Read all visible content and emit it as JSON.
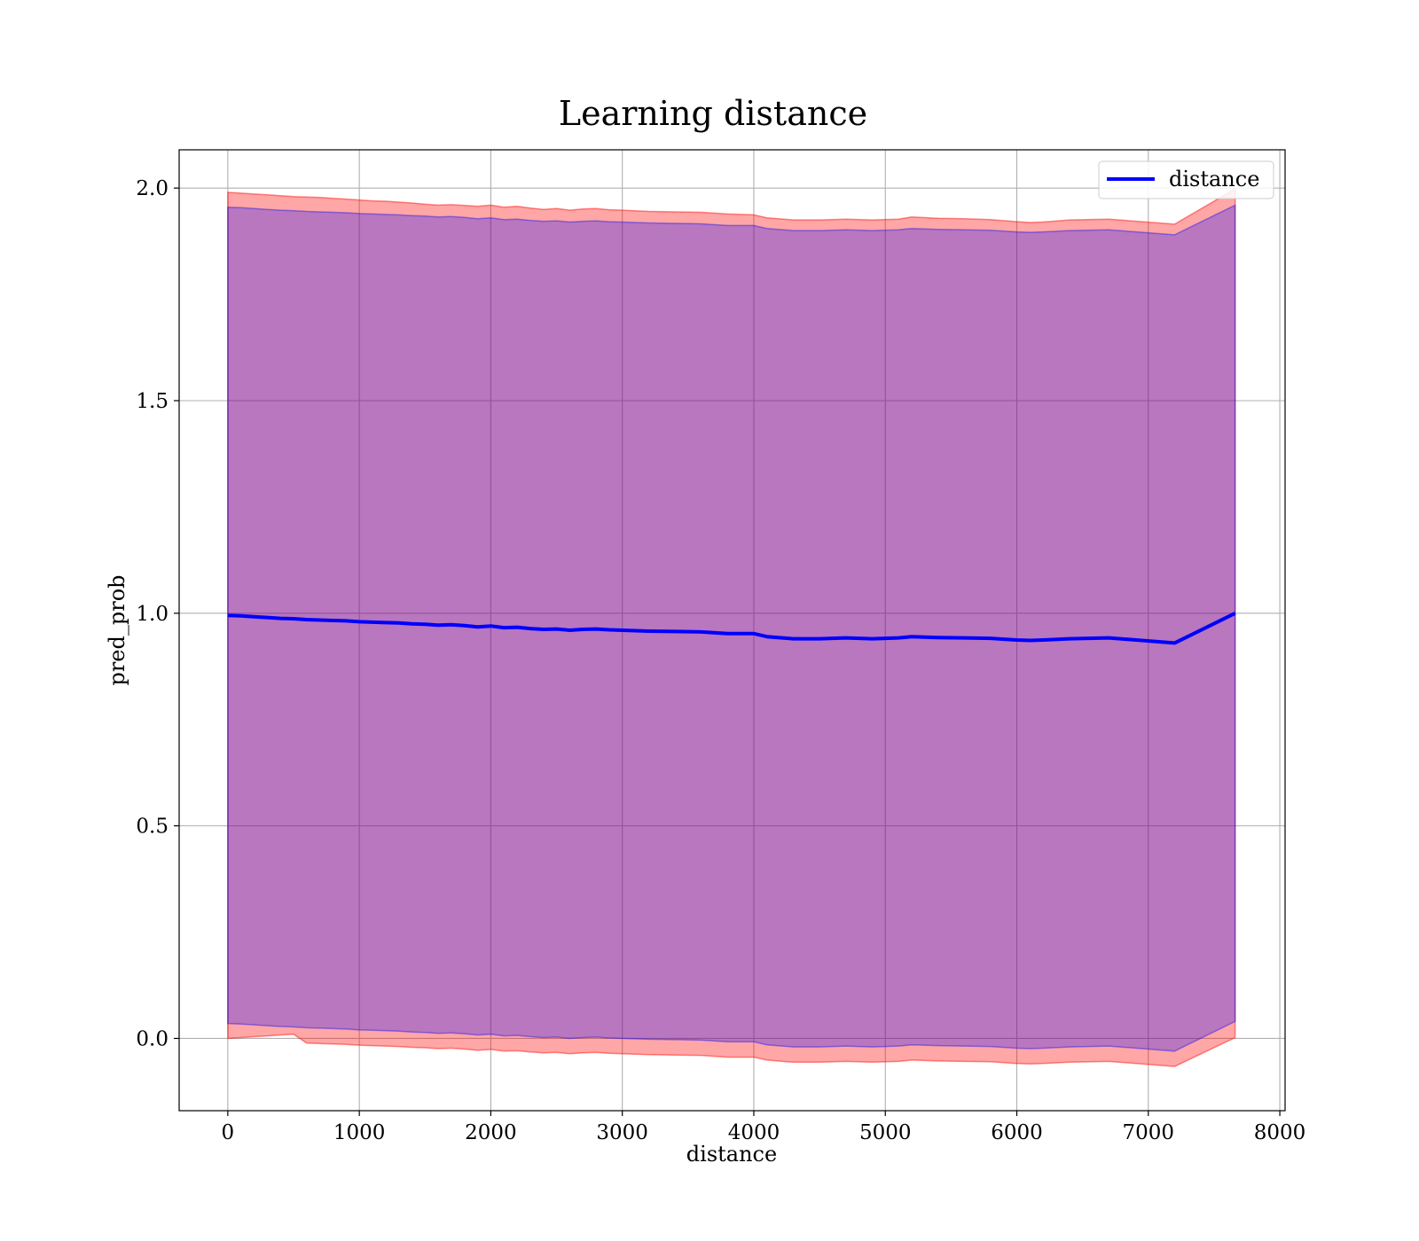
{
  "chart_data": {
    "type": "line",
    "title": "Learning distance",
    "xlabel": "distance",
    "ylabel": "pred_prob",
    "xlim": [
      -370,
      8040
    ],
    "ylim": [
      -0.17,
      2.09
    ],
    "xticks": [
      0,
      1000,
      2000,
      3000,
      4000,
      5000,
      6000,
      7000,
      8000
    ],
    "xtick_labels": [
      "0",
      "1000",
      "2000",
      "3000",
      "4000",
      "5000",
      "6000",
      "7000",
      "8000"
    ],
    "yticks": [
      0.0,
      0.5,
      1.0,
      1.5,
      2.0
    ],
    "ytick_labels": [
      "0.0",
      "0.5",
      "1.0",
      "1.5",
      "2.0"
    ],
    "grid": true,
    "legend_position": "top-right",
    "series": [
      {
        "name": "distance",
        "color": "#0000ff",
        "x": [
          0,
          100,
          200,
          300,
          400,
          500,
          600,
          700,
          800,
          900,
          1000,
          1100,
          1200,
          1300,
          1400,
          1500,
          1600,
          1700,
          1800,
          1900,
          2000,
          2100,
          2200,
          2300,
          2400,
          2500,
          2600,
          2700,
          2800,
          2900,
          3000,
          3200,
          3400,
          3600,
          3800,
          4000,
          4100,
          4300,
          4500,
          4700,
          4900,
          5100,
          5200,
          5400,
          5600,
          5800,
          6000,
          6100,
          6200,
          6400,
          6700,
          7200,
          7660
        ],
        "y": [
          0.995,
          0.994,
          0.992,
          0.99,
          0.988,
          0.987,
          0.985,
          0.984,
          0.983,
          0.982,
          0.98,
          0.979,
          0.978,
          0.977,
          0.975,
          0.974,
          0.972,
          0.973,
          0.971,
          0.968,
          0.97,
          0.966,
          0.967,
          0.964,
          0.962,
          0.963,
          0.96,
          0.962,
          0.963,
          0.961,
          0.96,
          0.958,
          0.957,
          0.956,
          0.952,
          0.952,
          0.945,
          0.94,
          0.94,
          0.942,
          0.94,
          0.942,
          0.945,
          0.943,
          0.942,
          0.941,
          0.937,
          0.936,
          0.937,
          0.94,
          0.942,
          0.93,
          1.0
        ]
      }
    ],
    "bands": [
      {
        "fill": "#ff0000",
        "opacity": 0.35,
        "x": [
          0,
          100,
          200,
          300,
          400,
          500,
          600,
          700,
          800,
          900,
          1000,
          1100,
          1200,
          1300,
          1400,
          1500,
          1600,
          1700,
          1800,
          1900,
          2000,
          2100,
          2200,
          2300,
          2400,
          2500,
          2600,
          2700,
          2800,
          2900,
          3000,
          3200,
          3400,
          3600,
          3800,
          4000,
          4100,
          4300,
          4500,
          4700,
          4900,
          5100,
          5200,
          5400,
          5600,
          5800,
          6000,
          6100,
          6200,
          6400,
          6700,
          7200,
          7660
        ],
        "upper": [
          1.99,
          1.988,
          1.986,
          1.984,
          1.982,
          1.98,
          1.979,
          1.978,
          1.976,
          1.974,
          1.972,
          1.97,
          1.969,
          1.967,
          1.965,
          1.962,
          1.96,
          1.961,
          1.959,
          1.957,
          1.96,
          1.955,
          1.957,
          1.953,
          1.95,
          1.952,
          1.948,
          1.951,
          1.952,
          1.949,
          1.948,
          1.945,
          1.944,
          1.943,
          1.939,
          1.937,
          1.93,
          1.925,
          1.925,
          1.927,
          1.925,
          1.927,
          1.932,
          1.929,
          1.928,
          1.926,
          1.921,
          1.919,
          1.92,
          1.925,
          1.927,
          1.915,
          1.998
        ],
        "lower": [
          0.0,
          0.002,
          0.004,
          0.006,
          0.008,
          0.01,
          -0.011,
          -0.012,
          -0.013,
          -0.014,
          -0.016,
          -0.017,
          -0.018,
          -0.019,
          -0.021,
          -0.022,
          -0.024,
          -0.023,
          -0.025,
          -0.028,
          -0.026,
          -0.03,
          -0.029,
          -0.032,
          -0.034,
          -0.033,
          -0.036,
          -0.034,
          -0.033,
          -0.035,
          -0.036,
          -0.038,
          -0.039,
          -0.04,
          -0.044,
          -0.044,
          -0.051,
          -0.056,
          -0.056,
          -0.054,
          -0.056,
          -0.054,
          -0.051,
          -0.053,
          -0.054,
          -0.055,
          -0.059,
          -0.06,
          -0.059,
          -0.056,
          -0.054,
          -0.066,
          0.002
        ]
      },
      {
        "fill": "#0000ff",
        "opacity": 0.28,
        "x": [
          0,
          100,
          200,
          300,
          400,
          500,
          600,
          700,
          800,
          900,
          1000,
          1100,
          1200,
          1300,
          1400,
          1500,
          1600,
          1700,
          1800,
          1900,
          2000,
          2100,
          2200,
          2300,
          2400,
          2500,
          2600,
          2700,
          2800,
          2900,
          3000,
          3200,
          3400,
          3600,
          3800,
          4000,
          4100,
          4300,
          4500,
          4700,
          4900,
          5100,
          5200,
          5400,
          5600,
          5800,
          6000,
          6100,
          6200,
          6400,
          6700,
          7200,
          7660
        ],
        "upper": [
          1.955,
          1.954,
          1.952,
          1.95,
          1.948,
          1.947,
          1.945,
          1.944,
          1.943,
          1.942,
          1.94,
          1.939,
          1.938,
          1.937,
          1.935,
          1.934,
          1.932,
          1.933,
          1.931,
          1.928,
          1.93,
          1.926,
          1.927,
          1.924,
          1.922,
          1.923,
          1.92,
          1.922,
          1.923,
          1.921,
          1.92,
          1.918,
          1.917,
          1.916,
          1.912,
          1.912,
          1.905,
          1.9,
          1.9,
          1.902,
          1.9,
          1.902,
          1.905,
          1.903,
          1.902,
          1.901,
          1.897,
          1.896,
          1.897,
          1.9,
          1.902,
          1.89,
          1.96
        ],
        "lower": [
          0.035,
          0.034,
          0.032,
          0.03,
          0.028,
          0.027,
          0.025,
          0.024,
          0.023,
          0.022,
          0.02,
          0.019,
          0.018,
          0.017,
          0.015,
          0.014,
          0.012,
          0.013,
          0.011,
          0.008,
          0.01,
          0.006,
          0.007,
          0.004,
          0.002,
          0.003,
          0.0,
          0.002,
          0.003,
          0.001,
          0.0,
          -0.002,
          -0.003,
          -0.004,
          -0.008,
          -0.008,
          -0.015,
          -0.02,
          -0.02,
          -0.018,
          -0.02,
          -0.018,
          -0.015,
          -0.017,
          -0.018,
          -0.019,
          -0.023,
          -0.024,
          -0.023,
          -0.02,
          -0.018,
          -0.03,
          0.04
        ]
      }
    ]
  }
}
